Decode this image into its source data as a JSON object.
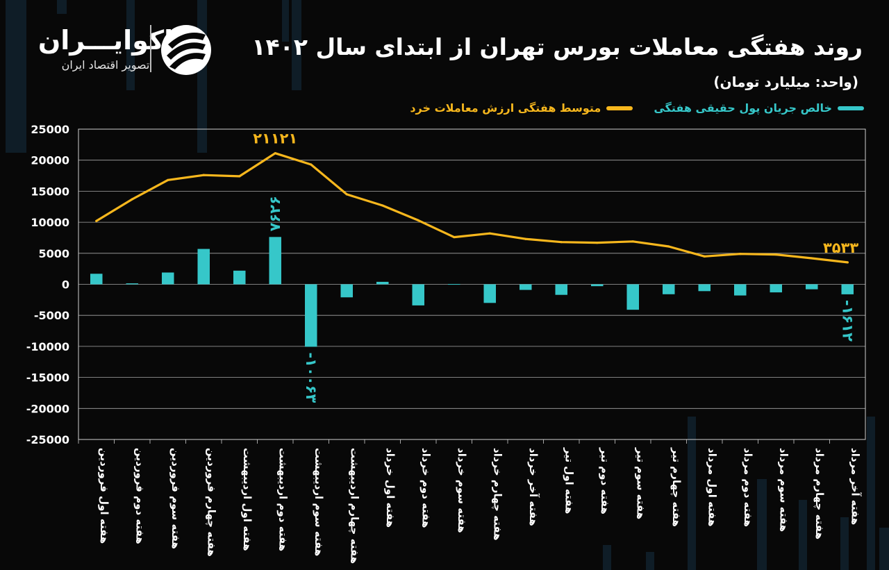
{
  "header": {
    "title": "روند هفتگی معاملات بورس تهران از ابتدای سال ۱۴۰۲",
    "unit": "(واحد: میلیارد تومان)"
  },
  "logo": {
    "name": "اکوایـــران",
    "tagline": "تصویر اقتصاد ایران"
  },
  "colors": {
    "background": "#080808",
    "bar": "#36c7c9",
    "line": "#f7b71d",
    "grid": "#cfcfcf",
    "text": "#ffffff"
  },
  "chart_data": {
    "type": "bar",
    "categories": [
      "هفته اول فروردین",
      "هفته دوم فروردین",
      "هفته سوم فروردین",
      "هفته چهارم فروردین",
      "هفته اول اردیبهشت",
      "هفته دوم اردیبهشت",
      "هفته سوم اردیبهشت",
      "هفته چهارم اردیبهشت",
      "هفته اول خرداد",
      "هفته دوم خرداد",
      "هفته سوم خرداد",
      "هفته چهارم خرداد",
      "هفته آخر خرداد",
      "هفته اول تیر",
      "هفته دوم تیر",
      "هفته سوم تیر",
      "هفته چهارم تیر",
      "هفته اول مرداد",
      "هفته دوم مرداد",
      "هفته سوم مرداد",
      "هفته چهارم مرداد",
      "هفته آخر مرداد"
    ],
    "series": [
      {
        "name": "خالص جریان پول حقیقی هفتگی",
        "kind": "bar",
        "color": "#36c7c9",
        "values": [
          1700,
          150,
          1900,
          5700,
          2200,
          7626,
          -10063,
          -2100,
          400,
          -3400,
          50,
          -3000,
          -900,
          -1700,
          -300,
          -4100,
          -1600,
          -1100,
          -1800,
          -1300,
          -800,
          -1612
        ]
      },
      {
        "name": "متوسط هفتگی ارزش معاملات خرد",
        "kind": "line",
        "color": "#f7b71d",
        "values": [
          10200,
          13700,
          16800,
          17600,
          17400,
          21121,
          19300,
          14500,
          12700,
          10300,
          7600,
          8200,
          7300,
          6800,
          6700,
          6900,
          6100,
          4500,
          4900,
          4800,
          4200,
          3533
        ]
      }
    ],
    "data_labels": [
      {
        "series": 1,
        "index": 5,
        "text": "۲۱۱۲۱"
      },
      {
        "series": 0,
        "index": 5,
        "text": "۷۶۲۶"
      },
      {
        "series": 0,
        "index": 6,
        "text": "-۱۰۰۶۳"
      },
      {
        "series": 1,
        "index": 21,
        "text": "۳۵۳۳"
      },
      {
        "series": 0,
        "index": 21,
        "text": "-۱۶۱۲"
      }
    ],
    "y_ticks": [
      25000,
      20000,
      15000,
      10000,
      5000,
      0,
      -5000,
      -10000,
      -15000,
      -20000,
      -25000
    ],
    "y_tick_labels": [
      "25000",
      "20000",
      "15000",
      "10000",
      "5000",
      "0",
      "-5000",
      "-10000",
      "-15000",
      "-20000",
      "-25000"
    ],
    "ylim": [
      -25000,
      25000
    ],
    "grid": true,
    "legend_position": "top-right"
  }
}
